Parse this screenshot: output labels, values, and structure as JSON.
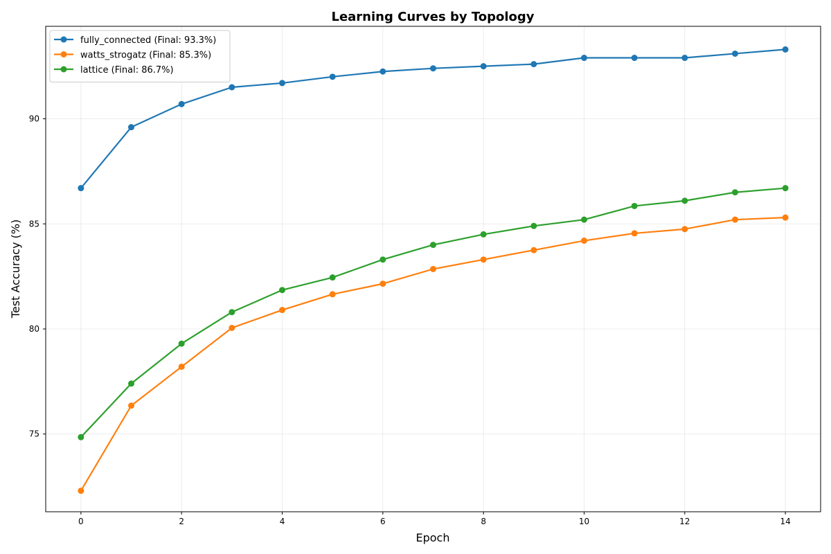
{
  "chart_data": {
    "type": "line",
    "title": "Learning Curves by Topology",
    "xlabel": "Epoch",
    "ylabel": "Test Accuracy (%)",
    "xlim": [
      -0.7,
      14.7
    ],
    "ylim": [
      71.3,
      94.4
    ],
    "xticks": [
      0,
      2,
      4,
      6,
      8,
      10,
      12,
      14
    ],
    "yticks": [
      75,
      80,
      85,
      90
    ],
    "grid": true,
    "legend_position": "top-left",
    "x": [
      0,
      1,
      2,
      3,
      4,
      5,
      6,
      7,
      8,
      9,
      10,
      11,
      12,
      13,
      14
    ],
    "series": [
      {
        "name": "fully_connected (Final: 93.3%)",
        "color": "#1f77b4",
        "values": [
          86.7,
          89.6,
          90.7,
          91.5,
          91.7,
          92.0,
          92.25,
          92.4,
          92.5,
          92.6,
          92.9,
          92.9,
          92.9,
          93.1,
          93.3
        ]
      },
      {
        "name": "watts_strogatz (Final: 85.3%)",
        "color": "#ff7f0e",
        "values": [
          72.3,
          76.35,
          78.2,
          80.05,
          80.9,
          81.65,
          82.15,
          82.85,
          83.3,
          83.75,
          84.2,
          84.55,
          84.75,
          85.2,
          85.3
        ]
      },
      {
        "name": "lattice (Final: 86.7%)",
        "color": "#2ca02c",
        "values": [
          74.85,
          77.4,
          79.3,
          80.8,
          81.85,
          82.45,
          83.3,
          84.0,
          84.5,
          84.9,
          85.2,
          85.85,
          86.1,
          86.5,
          86.7
        ]
      }
    ]
  }
}
